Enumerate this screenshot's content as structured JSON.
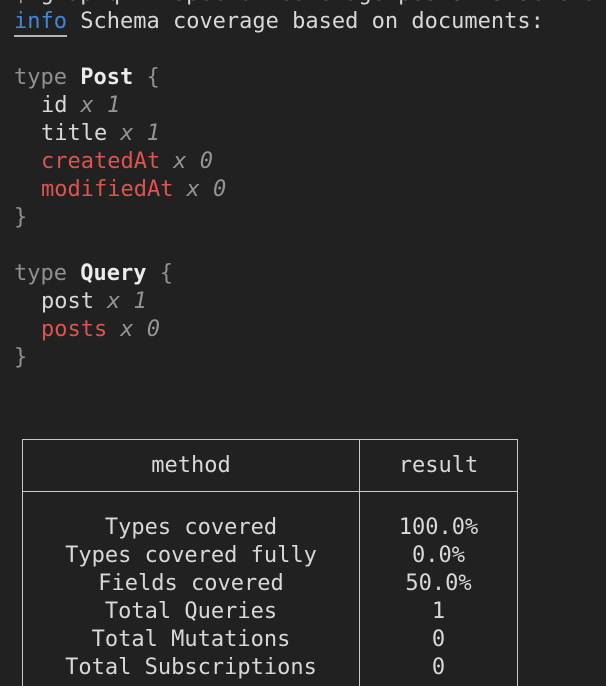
{
  "terminal": {
    "clipped_top_line": "$ graphql-inspector coverage posts.ts schema.graphql",
    "info": {
      "label": "info",
      "message": "Schema coverage based on documents:"
    }
  },
  "schema": {
    "keyword": "type",
    "open_brace": "{",
    "close_brace": "}",
    "blocks": [
      {
        "name": "Post",
        "fields": [
          {
            "name": "id",
            "usage": "x 1",
            "covered": true
          },
          {
            "name": "title",
            "usage": "x 1",
            "covered": true
          },
          {
            "name": "createdAt",
            "usage": "x 0",
            "covered": false
          },
          {
            "name": "modifiedAt",
            "usage": "x 0",
            "covered": false
          }
        ]
      },
      {
        "name": "Query",
        "fields": [
          {
            "name": "post",
            "usage": "x 1",
            "covered": true
          },
          {
            "name": "posts",
            "usage": "x 0",
            "covered": false
          }
        ]
      }
    ]
  },
  "coverage_table": {
    "headers": {
      "method": "method",
      "result": "result"
    },
    "rows": [
      {
        "method": "Types covered",
        "result": "100.0%"
      },
      {
        "method": "Types covered fully",
        "result": "0.0%"
      },
      {
        "method": "Fields covered",
        "result": "50.0%"
      },
      {
        "method": "Total Queries",
        "result": "1"
      },
      {
        "method": "Total Mutations",
        "result": "0"
      },
      {
        "method": "Total Subscriptions",
        "result": "0"
      }
    ]
  },
  "colors": {
    "background": "#212121",
    "text": "#d8d8d8",
    "dim": "#909090",
    "uncovered_red": "#dc5450",
    "info_blue": "#4585d6",
    "table_border": "#c8c8c8"
  }
}
